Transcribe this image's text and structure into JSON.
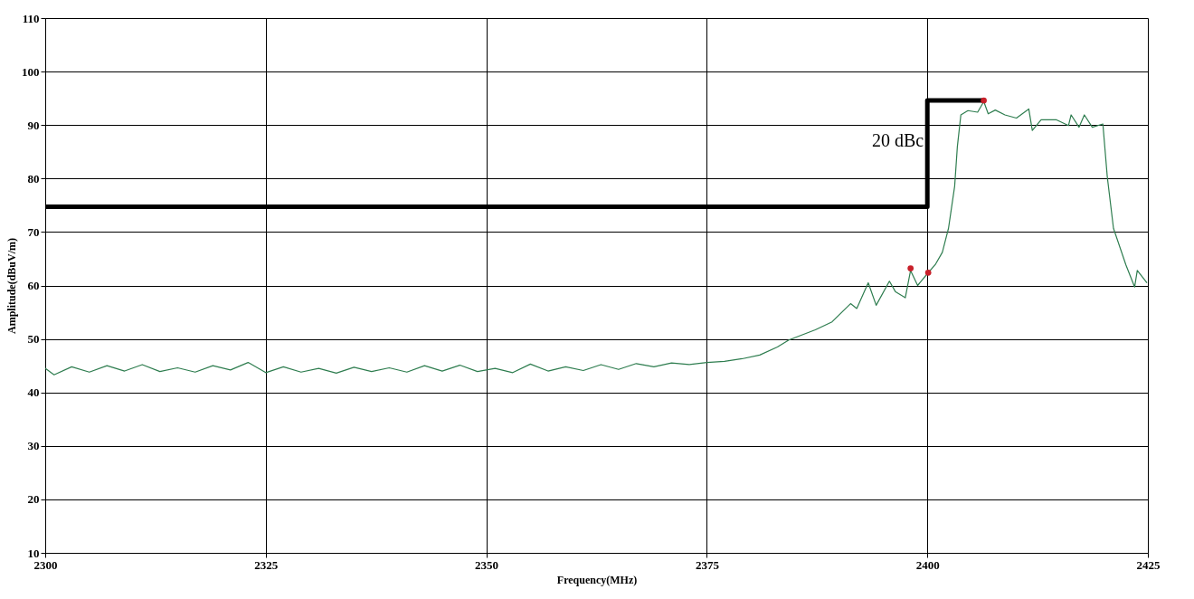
{
  "chart_data": {
    "type": "line",
    "xlabel": "Frequency(MHz)",
    "ylabel": "Amplitude(dBuV/m)",
    "xlim": [
      2300,
      2425
    ],
    "xticks": [
      2300,
      2325,
      2350,
      2375,
      2400,
      2425
    ],
    "ylim": [
      10,
      110
    ],
    "yticks": [
      10,
      20,
      30,
      40,
      50,
      60,
      70,
      80,
      90,
      100,
      110
    ],
    "grid": true,
    "annotations": [
      {
        "text": "20 dBc",
        "x": 2400,
        "y": 87
      }
    ],
    "series": [
      {
        "color": "#2e7d4f",
        "x": [
          2300,
          2301,
          2303,
          2305,
          2307,
          2309,
          2311,
          2313,
          2315,
          2317,
          2319,
          2321,
          2323,
          2325,
          2327,
          2329,
          2331,
          2333,
          2335,
          2337,
          2339,
          2341,
          2343,
          2345,
          2347,
          2349,
          2351,
          2353,
          2355,
          2357,
          2359,
          2361,
          2363,
          2365,
          2367,
          2369,
          2371,
          2373,
          2375,
          2377,
          2379,
          2381,
          2383,
          2384.3,
          2387.3,
          2389.2,
          2391.3,
          2392,
          2393.3,
          2394.2,
          2395.7,
          2396.4,
          2397.5,
          2398.1,
          2398.9,
          2400.0,
          2400.9,
          2401.7,
          2402.4,
          2403.1,
          2403.4,
          2403.8,
          2404.6,
          2405.7,
          2406.4,
          2406.9,
          2407.7,
          2408.8,
          2410.1,
          2411.5,
          2411.9,
          2412.9,
          2414.6,
          2416.0,
          2416.3,
          2417.2,
          2417.8,
          2418.7,
          2419.9,
          2420.4,
          2421.1,
          2422.5,
          2423.5,
          2423.8,
          2424.9
        ],
        "values": [
          44.5,
          43.3,
          44.8,
          43.8,
          45.0,
          44.0,
          45.2,
          43.9,
          44.6,
          43.8,
          45.0,
          44.2,
          45.6,
          43.7,
          44.8,
          43.8,
          44.5,
          43.6,
          44.7,
          43.9,
          44.6,
          43.8,
          45.0,
          44.0,
          45.1,
          43.9,
          44.5,
          43.7,
          45.3,
          44.0,
          44.8,
          44.1,
          45.2,
          44.3,
          45.4,
          44.8,
          45.5,
          45.2,
          45.6,
          45.8,
          46.3,
          47.0,
          48.5,
          49.8,
          51.7,
          53.2,
          56.6,
          55.7,
          60.5,
          56.3,
          60.8,
          58.8,
          57.7,
          62.8,
          60.0,
          62.2,
          63.9,
          66.2,
          70.7,
          78.6,
          85.9,
          91.9,
          92.7,
          92.4,
          94.4,
          92.1,
          92.8,
          91.9,
          91.3,
          93.0,
          89.0,
          91.0,
          91.0,
          89.9,
          91.9,
          89.6,
          91.9,
          89.6,
          90.2,
          80.3,
          70.7,
          63.9,
          59.7,
          62.8,
          60.5
        ]
      },
      {
        "color": "#000000",
        "x": [
          2300,
          2400,
          2400,
          2406.4
        ],
        "values": [
          74.7,
          74.7,
          94.6,
          94.6
        ]
      },
      {
        "type": "scatter",
        "color": "#c8202a",
        "marker": "circle",
        "x": [
          2398.1,
          2400.1,
          2406.4
        ],
        "values": [
          63.2,
          62.4,
          94.6
        ]
      }
    ]
  }
}
